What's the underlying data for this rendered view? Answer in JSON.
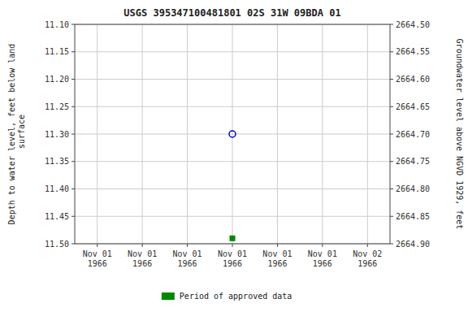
{
  "chart_data": {
    "type": "scatter",
    "title": "USGS 395347100481801 02S 31W 09BDA 01",
    "y_label": "Depth to water level, feet below land\n surface",
    "y2_label": "Groundwater level above NGVD 1929, feet",
    "categories": [
      "Nov 01\n1966",
      "Nov 01\n1966",
      "Nov 01\n1966",
      "Nov 01\n1966",
      "Nov 01\n1966",
      "Nov 01\n1966",
      "Nov 02\n1966"
    ],
    "series": [
      {
        "color": "#0000bb",
        "marker": "open_circle",
        "values": [
          null,
          null,
          null,
          11.3,
          null,
          null,
          null
        ]
      },
      {
        "name": "Period of approved data",
        "color": "#008800",
        "marker": "square",
        "values": [
          null,
          null,
          null,
          11.49,
          null,
          null,
          null
        ]
      }
    ],
    "ylim": [
      11.5,
      11.1
    ],
    "yticks": [
      {
        "value": 11.1,
        "label": "11.10"
      },
      11.15,
      {
        "value": 11.2,
        "label": "11.20"
      },
      11.25,
      {
        "value": 11.3,
        "label": "11.30"
      },
      11.35,
      {
        "value": 11.4,
        "label": "11.40"
      },
      11.45,
      {
        "value": 11.5,
        "label": "11.50"
      }
    ],
    "y2lim": [
      2664.9,
      2664.5
    ],
    "y2ticks": [
      {
        "value": 2664.9,
        "label": "2664.90"
      },
      2664.85,
      {
        "value": 2664.8,
        "label": "2664.80"
      },
      2664.75,
      {
        "value": 2664.7,
        "label": "2664.70"
      },
      2664.65,
      {
        "value": 2664.6,
        "label": "2664.60"
      },
      2664.55,
      {
        "value": 2664.5,
        "label": "2664.50"
      }
    ],
    "grid": true,
    "legend": "bottom"
  }
}
